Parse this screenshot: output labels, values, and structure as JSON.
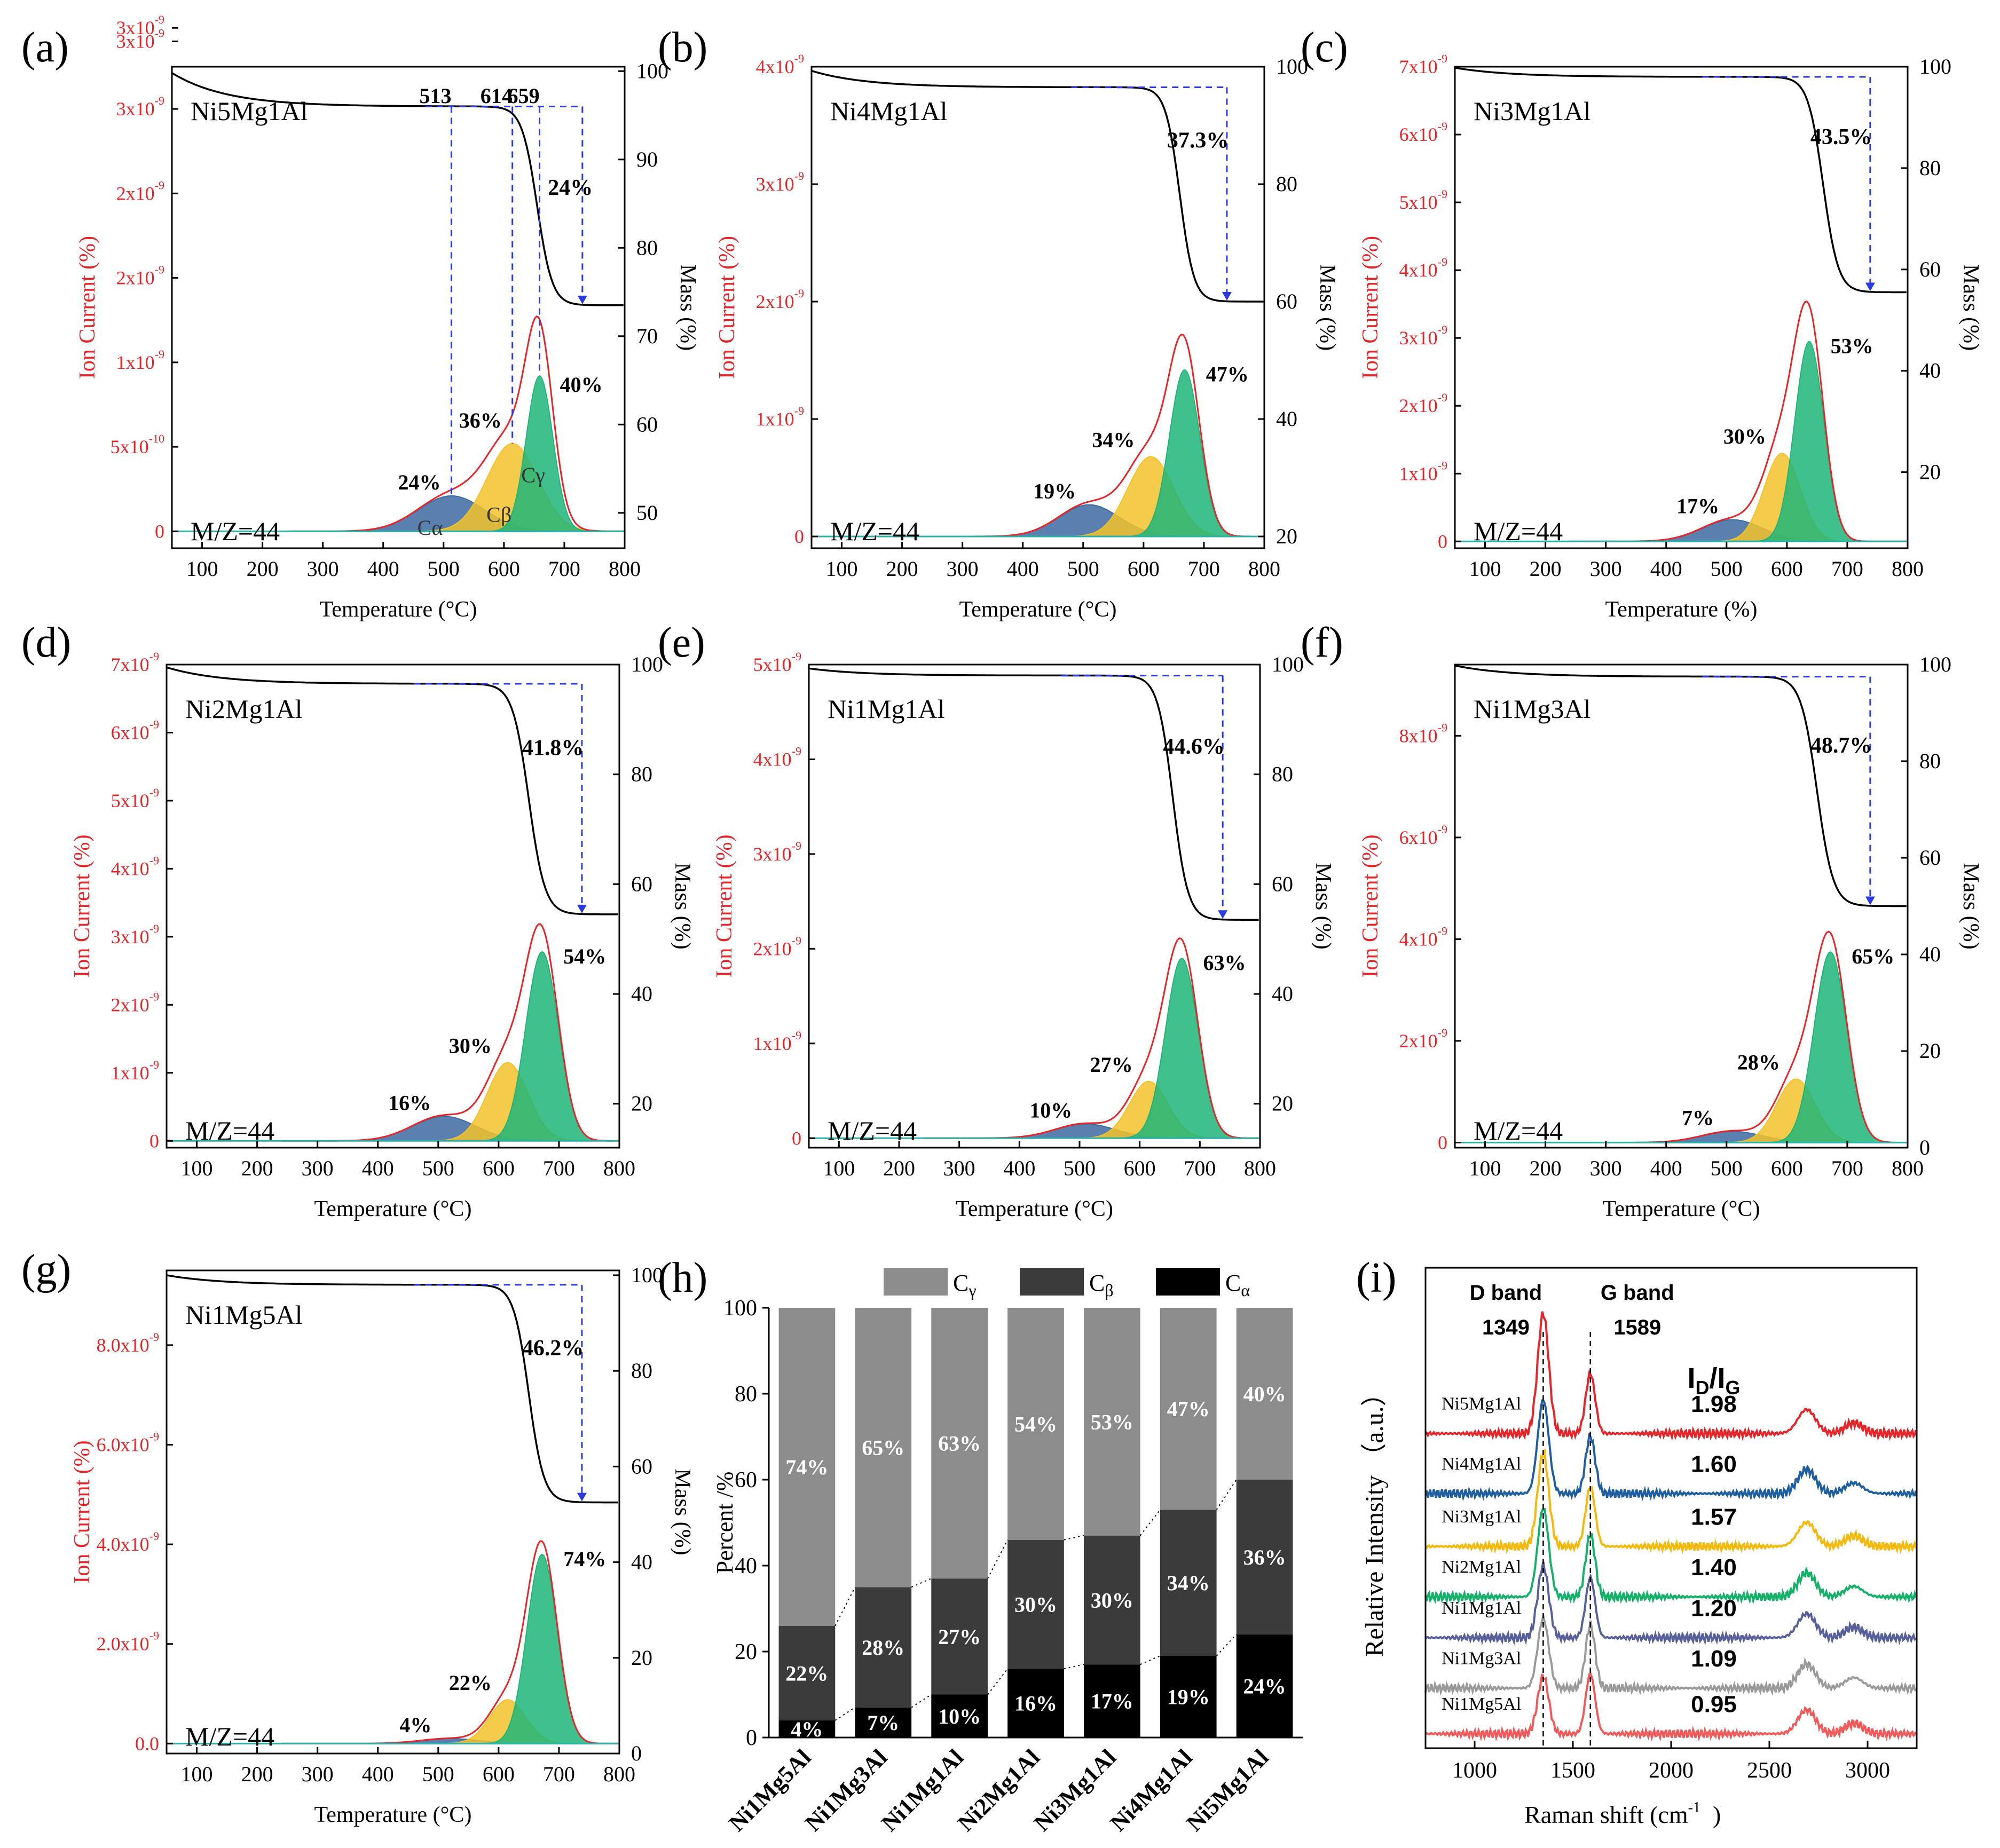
{
  "chart_data": [
    {
      "type": "line",
      "panel": "(a)",
      "sample": "Ni5Mg1Al",
      "mz": "M/Z=44",
      "xlabel": "Temperature (°C)",
      "ylabel_left": "Ion Current (%)",
      "ylabel_right": "Mass (%)",
      "xlim": [
        50,
        800
      ],
      "xticks": [
        "100",
        "200",
        "300",
        "400",
        "500",
        "600",
        "700",
        "800"
      ],
      "ylim_left": [
        -0.1,
        2.75
      ],
      "yticks_left": [
        {
          "v": 0,
          "label": "0"
        },
        {
          "v": 0.5,
          "label": "5x10",
          "exp": "-10"
        },
        {
          "v": 1.0,
          "label": "1x10",
          "exp": "-9"
        },
        {
          "v": 1.5,
          "label": "2x10",
          "exp": "-9"
        },
        {
          "v": 2.0,
          "label": "2x10",
          "exp": "-9"
        },
        {
          "v": 2.5,
          "label": "3x10",
          "exp": "-9"
        },
        {
          "v": 2.9,
          "label": "3x10",
          "exp": "-9"
        },
        {
          "v": 2.98,
          "label": "3x10",
          "exp": "-9"
        }
      ],
      "ylim_right": [
        46,
        100.5
      ],
      "yticks_right": [
        50,
        60,
        70,
        80,
        90,
        100
      ],
      "tg": {
        "start_mass": 99.8,
        "plateau_mass": 96.0,
        "final_mass": 73.5,
        "onset": 590,
        "center": 655,
        "width": 30
      },
      "peaks": [
        {
          "name": "Cα",
          "label": "Cα",
          "center": 513,
          "amp": 0.21,
          "sigma": 55,
          "color": "#3c6aa0",
          "pct": "24%"
        },
        {
          "name": "Cβ",
          "label": "Cβ",
          "center": 614,
          "amp": 0.52,
          "sigma": 42,
          "color": "#f2c22a",
          "pct": "36%"
        },
        {
          "name": "Cγ",
          "label": "Cγ",
          "center": 659,
          "amp": 0.92,
          "sigma": 22,
          "color": "#1fb579",
          "pct": "40%"
        }
      ],
      "mass_loss": "24%",
      "peak_temps": [
        "513",
        "614",
        "659"
      ]
    },
    {
      "type": "line",
      "panel": "(b)",
      "sample": "Ni4Mg1Al",
      "mz": "M/Z=44",
      "xlabel": "Temperature (°C)",
      "ylabel_left": "Ion Current (%)",
      "ylabel_right": "Mass (%)",
      "xlim": [
        50,
        800
      ],
      "xticks": [
        "100",
        "200",
        "300",
        "400",
        "500",
        "600",
        "700",
        "800"
      ],
      "ylim_left": [
        -0.1,
        4.0
      ],
      "yticks_left": [
        {
          "v": 0,
          "label": "0"
        },
        {
          "v": 1,
          "label": "1x10",
          "exp": "-9"
        },
        {
          "v": 2,
          "label": "2x10",
          "exp": "-9"
        },
        {
          "v": 3,
          "label": "3x10",
          "exp": "-9"
        },
        {
          "v": 4,
          "label": "4x10",
          "exp": "-9"
        }
      ],
      "ylim_right": [
        18,
        100
      ],
      "yticks_right": [
        20,
        40,
        60,
        80,
        100
      ],
      "tg": {
        "start_mass": 99.3,
        "plateau_mass": 96.5,
        "final_mass": 60,
        "onset": 600,
        "center": 660,
        "width": 28
      },
      "peaks": [
        {
          "name": "Cα",
          "center": 510,
          "amp": 0.27,
          "sigma": 50,
          "color": "#3c6aa0",
          "pct": "19%"
        },
        {
          "name": "Cβ",
          "center": 612,
          "amp": 0.68,
          "sigma": 38,
          "color": "#f2c22a",
          "pct": "34%"
        },
        {
          "name": "Cγ",
          "center": 668,
          "amp": 1.42,
          "sigma": 25,
          "color": "#1fb579",
          "pct": "47%"
        }
      ],
      "mass_loss": "37.3%"
    },
    {
      "type": "line",
      "panel": "(c)",
      "sample": "Ni3Mg1Al",
      "mz": "M/Z=44",
      "xlabel": "Temperature (%)",
      "ylabel_left": "Ion Current (%)",
      "ylabel_right": "Mass (%)",
      "xlim": [
        50,
        800
      ],
      "xticks": [
        "100",
        "200",
        "300",
        "400",
        "500",
        "600",
        "700",
        "800"
      ],
      "ylim_left": [
        -0.1,
        7.0
      ],
      "yticks_left": [
        {
          "v": 0,
          "label": "0"
        },
        {
          "v": 1,
          "label": "1x10",
          "exp": "-9"
        },
        {
          "v": 2,
          "label": "2x10",
          "exp": "-9"
        },
        {
          "v": 3,
          "label": "3x10",
          "exp": "-9"
        },
        {
          "v": 4,
          "label": "4x10",
          "exp": "-9"
        },
        {
          "v": 5,
          "label": "5x10",
          "exp": "-9"
        },
        {
          "v": 6,
          "label": "6x10",
          "exp": "-9"
        },
        {
          "v": 7,
          "label": "7x10",
          "exp": "-9"
        }
      ],
      "ylim_right": [
        5,
        100
      ],
      "yticks_right": [
        20,
        40,
        60,
        80,
        100
      ],
      "tg": {
        "start_mass": 99.8,
        "plateau_mass": 98,
        "final_mass": 55.5,
        "onset": 580,
        "center": 660,
        "width": 30
      },
      "peaks": [
        {
          "name": "Cα",
          "center": 510,
          "amp": 0.32,
          "sigma": 50,
          "color": "#3c6aa0",
          "pct": "17%"
        },
        {
          "name": "Cβ",
          "center": 592,
          "amp": 1.3,
          "sigma": 30,
          "color": "#f2c22a",
          "pct": "30%"
        },
        {
          "name": "Cγ",
          "center": 637,
          "amp": 2.95,
          "sigma": 24,
          "color": "#1fb579",
          "pct": "53%"
        }
      ],
      "mass_loss": "43.5%"
    },
    {
      "type": "line",
      "panel": "(d)",
      "sample": "Ni2Mg1Al",
      "mz": "M/Z=44",
      "xlabel": "Temperature (°C)",
      "ylabel_left": "Ion Current (%)",
      "ylabel_right": "Mass (%)",
      "xlim": [
        50,
        800
      ],
      "xticks": [
        "100",
        "200",
        "300",
        "400",
        "500",
        "600",
        "700",
        "800"
      ],
      "ylim_left": [
        -0.1,
        7.0
      ],
      "yticks_left": [
        {
          "v": 0,
          "label": "0"
        },
        {
          "v": 1,
          "label": "1x10",
          "exp": "-9"
        },
        {
          "v": 2,
          "label": "2x10",
          "exp": "-9"
        },
        {
          "v": 3,
          "label": "3x10",
          "exp": "-9"
        },
        {
          "v": 4,
          "label": "4x10",
          "exp": "-9"
        },
        {
          "v": 5,
          "label": "5x10",
          "exp": "-9"
        },
        {
          "v": 6,
          "label": "6x10",
          "exp": "-9"
        },
        {
          "v": 7,
          "label": "7x10",
          "exp": "-9"
        }
      ],
      "ylim_right": [
        12,
        100
      ],
      "yticks_right": [
        20,
        40,
        60,
        80,
        100
      ],
      "tg": {
        "start_mass": 99.5,
        "plateau_mass": 96.5,
        "final_mass": 54.5,
        "onset": 580,
        "center": 650,
        "width": 32
      },
      "peaks": [
        {
          "name": "Cα",
          "center": 510,
          "amp": 0.36,
          "sigma": 52,
          "color": "#3c6aa0",
          "pct": "16%"
        },
        {
          "name": "Cβ",
          "center": 615,
          "amp": 1.15,
          "sigma": 34,
          "color": "#f2c22a",
          "pct": "30%"
        },
        {
          "name": "Cγ",
          "center": 672,
          "amp": 2.78,
          "sigma": 27,
          "color": "#1fb579",
          "pct": "54%"
        }
      ],
      "mass_loss": "41.8%"
    },
    {
      "type": "line",
      "panel": "(e)",
      "sample": "Ni1Mg1Al",
      "mz": "M/Z=44",
      "xlabel": "Temperature (°C)",
      "ylabel_left": "Ion Current (%)",
      "ylabel_right": "Mass (%)",
      "xlim": [
        50,
        800
      ],
      "xticks": [
        "100",
        "200",
        "300",
        "400",
        "500",
        "600",
        "700",
        "800"
      ],
      "ylim_left": [
        -0.1,
        5.0
      ],
      "yticks_left": [
        {
          "v": 0,
          "label": "0"
        },
        {
          "v": 1,
          "label": "1x10",
          "exp": "-9"
        },
        {
          "v": 2,
          "label": "2x10",
          "exp": "-9"
        },
        {
          "v": 3,
          "label": "3x10",
          "exp": "-9"
        },
        {
          "v": 4,
          "label": "4x10",
          "exp": "-9"
        },
        {
          "v": 5,
          "label": "5x10",
          "exp": "-9"
        }
      ],
      "ylim_right": [
        12,
        100
      ],
      "yticks_right": [
        20,
        40,
        60,
        80,
        100
      ],
      "tg": {
        "start_mass": 99.3,
        "plateau_mass": 98,
        "final_mass": 53.5,
        "onset": 590,
        "center": 655,
        "width": 30
      },
      "peaks": [
        {
          "name": "Cα",
          "center": 510,
          "amp": 0.15,
          "sigma": 50,
          "color": "#3c6aa0",
          "pct": "10%"
        },
        {
          "name": "Cβ",
          "center": 615,
          "amp": 0.6,
          "sigma": 32,
          "color": "#f2c22a",
          "pct": "27%"
        },
        {
          "name": "Cγ",
          "center": 670,
          "amp": 1.9,
          "sigma": 27,
          "color": "#1fb579",
          "pct": "63%"
        }
      ],
      "mass_loss": "44.6%"
    },
    {
      "type": "line",
      "panel": "(f)",
      "sample": "Ni1Mg3Al",
      "mz": "M/Z=44",
      "xlabel": "Temperature (°C)",
      "ylabel_left": "Ion Current (%)",
      "ylabel_right": "Mass (%)",
      "xlim": [
        50,
        800
      ],
      "xticks": [
        "100",
        "200",
        "300",
        "400",
        "500",
        "600",
        "700",
        "800"
      ],
      "ylim_left": [
        -0.1,
        9.4
      ],
      "yticks_left": [
        {
          "v": 0,
          "label": "0"
        },
        {
          "v": 2,
          "label": "2x10",
          "exp": "-9"
        },
        {
          "v": 4,
          "label": "4x10",
          "exp": "-9"
        },
        {
          "v": 6,
          "label": "6x10",
          "exp": "-9"
        },
        {
          "v": 8,
          "label": "8x10",
          "exp": "-9"
        }
      ],
      "ylim_right": [
        0,
        100
      ],
      "yticks_right": [
        0,
        20,
        40,
        60,
        80,
        100
      ],
      "tg": {
        "start_mass": 99.8,
        "plateau_mass": 97.5,
        "final_mass": 50,
        "onset": 580,
        "center": 650,
        "width": 32
      },
      "peaks": [
        {
          "name": "Cα",
          "center": 510,
          "amp": 0.22,
          "sigma": 50,
          "color": "#3c6aa0",
          "pct": "7%"
        },
        {
          "name": "Cβ",
          "center": 615,
          "amp": 1.25,
          "sigma": 32,
          "color": "#f2c22a",
          "pct": "28%"
        },
        {
          "name": "Cγ",
          "center": 672,
          "amp": 3.75,
          "sigma": 27,
          "color": "#1fb579",
          "pct": "65%"
        }
      ],
      "mass_loss": "48.7%"
    },
    {
      "type": "line",
      "panel": "(g)",
      "sample": "Ni1Mg5Al",
      "mz": "M/Z=44",
      "xlabel": "Temperature (°C)",
      "ylabel_left": "Ion Current (%)",
      "ylabel_right": "Mass (%)",
      "xlim": [
        50,
        800
      ],
      "xticks": [
        "100",
        "200",
        "300",
        "400",
        "500",
        "600",
        "700",
        "800"
      ],
      "ylim_left": [
        -0.2,
        9.5
      ],
      "yticks_left": [
        {
          "v": 0,
          "label": "0.0"
        },
        {
          "v": 2,
          "label": "2.0x10",
          "exp": "-9"
        },
        {
          "v": 4,
          "label": "4.0x10",
          "exp": "-9"
        },
        {
          "v": 6,
          "label": "6.0x10",
          "exp": "-9"
        },
        {
          "v": 8,
          "label": "8.0x10",
          "exp": "-9"
        }
      ],
      "ylim_right": [
        0,
        101
      ],
      "yticks_right": [
        0,
        20,
        40,
        60,
        80,
        100
      ],
      "tg": {
        "start_mass": 100,
        "plateau_mass": 98,
        "final_mass": 52.5,
        "onset": 580,
        "center": 650,
        "width": 30
      },
      "peaks": [
        {
          "name": "Cα",
          "center": 520,
          "amp": 0.1,
          "sigma": 48,
          "color": "#3c6aa0",
          "pct": "4%"
        },
        {
          "name": "Cβ",
          "center": 615,
          "amp": 0.88,
          "sigma": 30,
          "color": "#f2c22a",
          "pct": "22%"
        },
        {
          "name": "Cγ",
          "center": 672,
          "amp": 3.8,
          "sigma": 25,
          "color": "#1fb579",
          "pct": "74%"
        }
      ],
      "mass_loss": "46.2%"
    },
    {
      "type": "bar",
      "panel": "(h)",
      "stacked": true,
      "ylabel": "Percent /%",
      "ylim": [
        0,
        100
      ],
      "yticks": [
        0,
        20,
        40,
        60,
        80,
        100
      ],
      "categories": [
        "Ni1Mg5Al",
        "Ni1Mg3Al",
        "Ni1Mg1Al",
        "Ni2Mg1Al",
        "Ni3Mg1Al",
        "Ni4Mg1Al",
        "Ni5Mg1Al"
      ],
      "series": [
        {
          "name": "Cα",
          "color": "#000000",
          "values": [
            4,
            7,
            10,
            16,
            17,
            19,
            24
          ],
          "labels": [
            "4%",
            "7%",
            "10%",
            "16%",
            "17%",
            "19%",
            "24%"
          ]
        },
        {
          "name": "Cβ",
          "color": "#3b3b3b",
          "values": [
            22,
            28,
            27,
            30,
            30,
            34,
            36
          ],
          "labels": [
            "22%",
            "28%",
            "27%",
            "30%",
            "30%",
            "34%",
            "36%"
          ]
        },
        {
          "name": "Cγ",
          "color": "#8c8c8c",
          "values": [
            74,
            65,
            63,
            54,
            53,
            47,
            40
          ],
          "labels": [
            "74%",
            "65%",
            "63%",
            "54%",
            "53%",
            "47%",
            "40%"
          ]
        }
      ],
      "legend": [
        {
          "name": "C",
          "sub": "γ",
          "color": "#8c8c8c"
        },
        {
          "name": "C",
          "sub": "β",
          "color": "#3b3b3b"
        },
        {
          "name": "C",
          "sub": "α",
          "color": "#000000"
        }
      ]
    },
    {
      "type": "line",
      "panel": "(i)",
      "xlabel": "Raman shift",
      "xunit": "cm",
      "xunit_exp": "-1",
      "ylabel": "Relative Intensity （a.u.）",
      "xlim": [
        750,
        3250
      ],
      "ylim": [
        0,
        10
      ],
      "xticks": [
        "1000",
        "1500",
        "2000",
        "2500",
        "3000"
      ],
      "d_band": {
        "label": "D band",
        "value": "1349",
        "x": 1349
      },
      "g_band": {
        "label": "G band",
        "value": "1589",
        "x": 1589
      },
      "ratio_label": "I",
      "ratio_sub_d": "D",
      "ratio_slash": "/I",
      "ratio_sub_g": "G",
      "series": [
        {
          "name": "Ni5Mg1Al",
          "color": "#e4262a",
          "offset": 6.55,
          "ratio": "1.98",
          "d_amp": 2.5,
          "g_amp": 1.25
        },
        {
          "name": "Ni4Mg1Al",
          "color": "#1f5fa0",
          "offset": 5.3,
          "ratio": "1.60",
          "d_amp": 1.95,
          "g_amp": 1.2
        },
        {
          "name": "Ni3Mg1Al",
          "color": "#f4b90a",
          "offset": 4.2,
          "ratio": "1.57",
          "d_amp": 1.95,
          "g_amp": 1.25
        },
        {
          "name": "Ni2Mg1Al",
          "color": "#15b06a",
          "offset": 3.15,
          "ratio": "1.40",
          "d_amp": 1.85,
          "g_amp": 1.3
        },
        {
          "name": "Ni1Mg1Al",
          "color": "#58609b",
          "offset": 2.3,
          "ratio": "1.20",
          "d_amp": 1.5,
          "g_amp": 1.25
        },
        {
          "name": "Ni1Mg3Al",
          "color": "#9a9a9a",
          "offset": 1.25,
          "ratio": "1.09",
          "d_amp": 1.45,
          "g_amp": 1.32
        },
        {
          "name": "Ni1Mg5Al",
          "color": "#f05a5a",
          "offset": 0.3,
          "ratio": "0.95",
          "d_amp": 1.2,
          "g_amp": 1.25
        }
      ]
    }
  ]
}
